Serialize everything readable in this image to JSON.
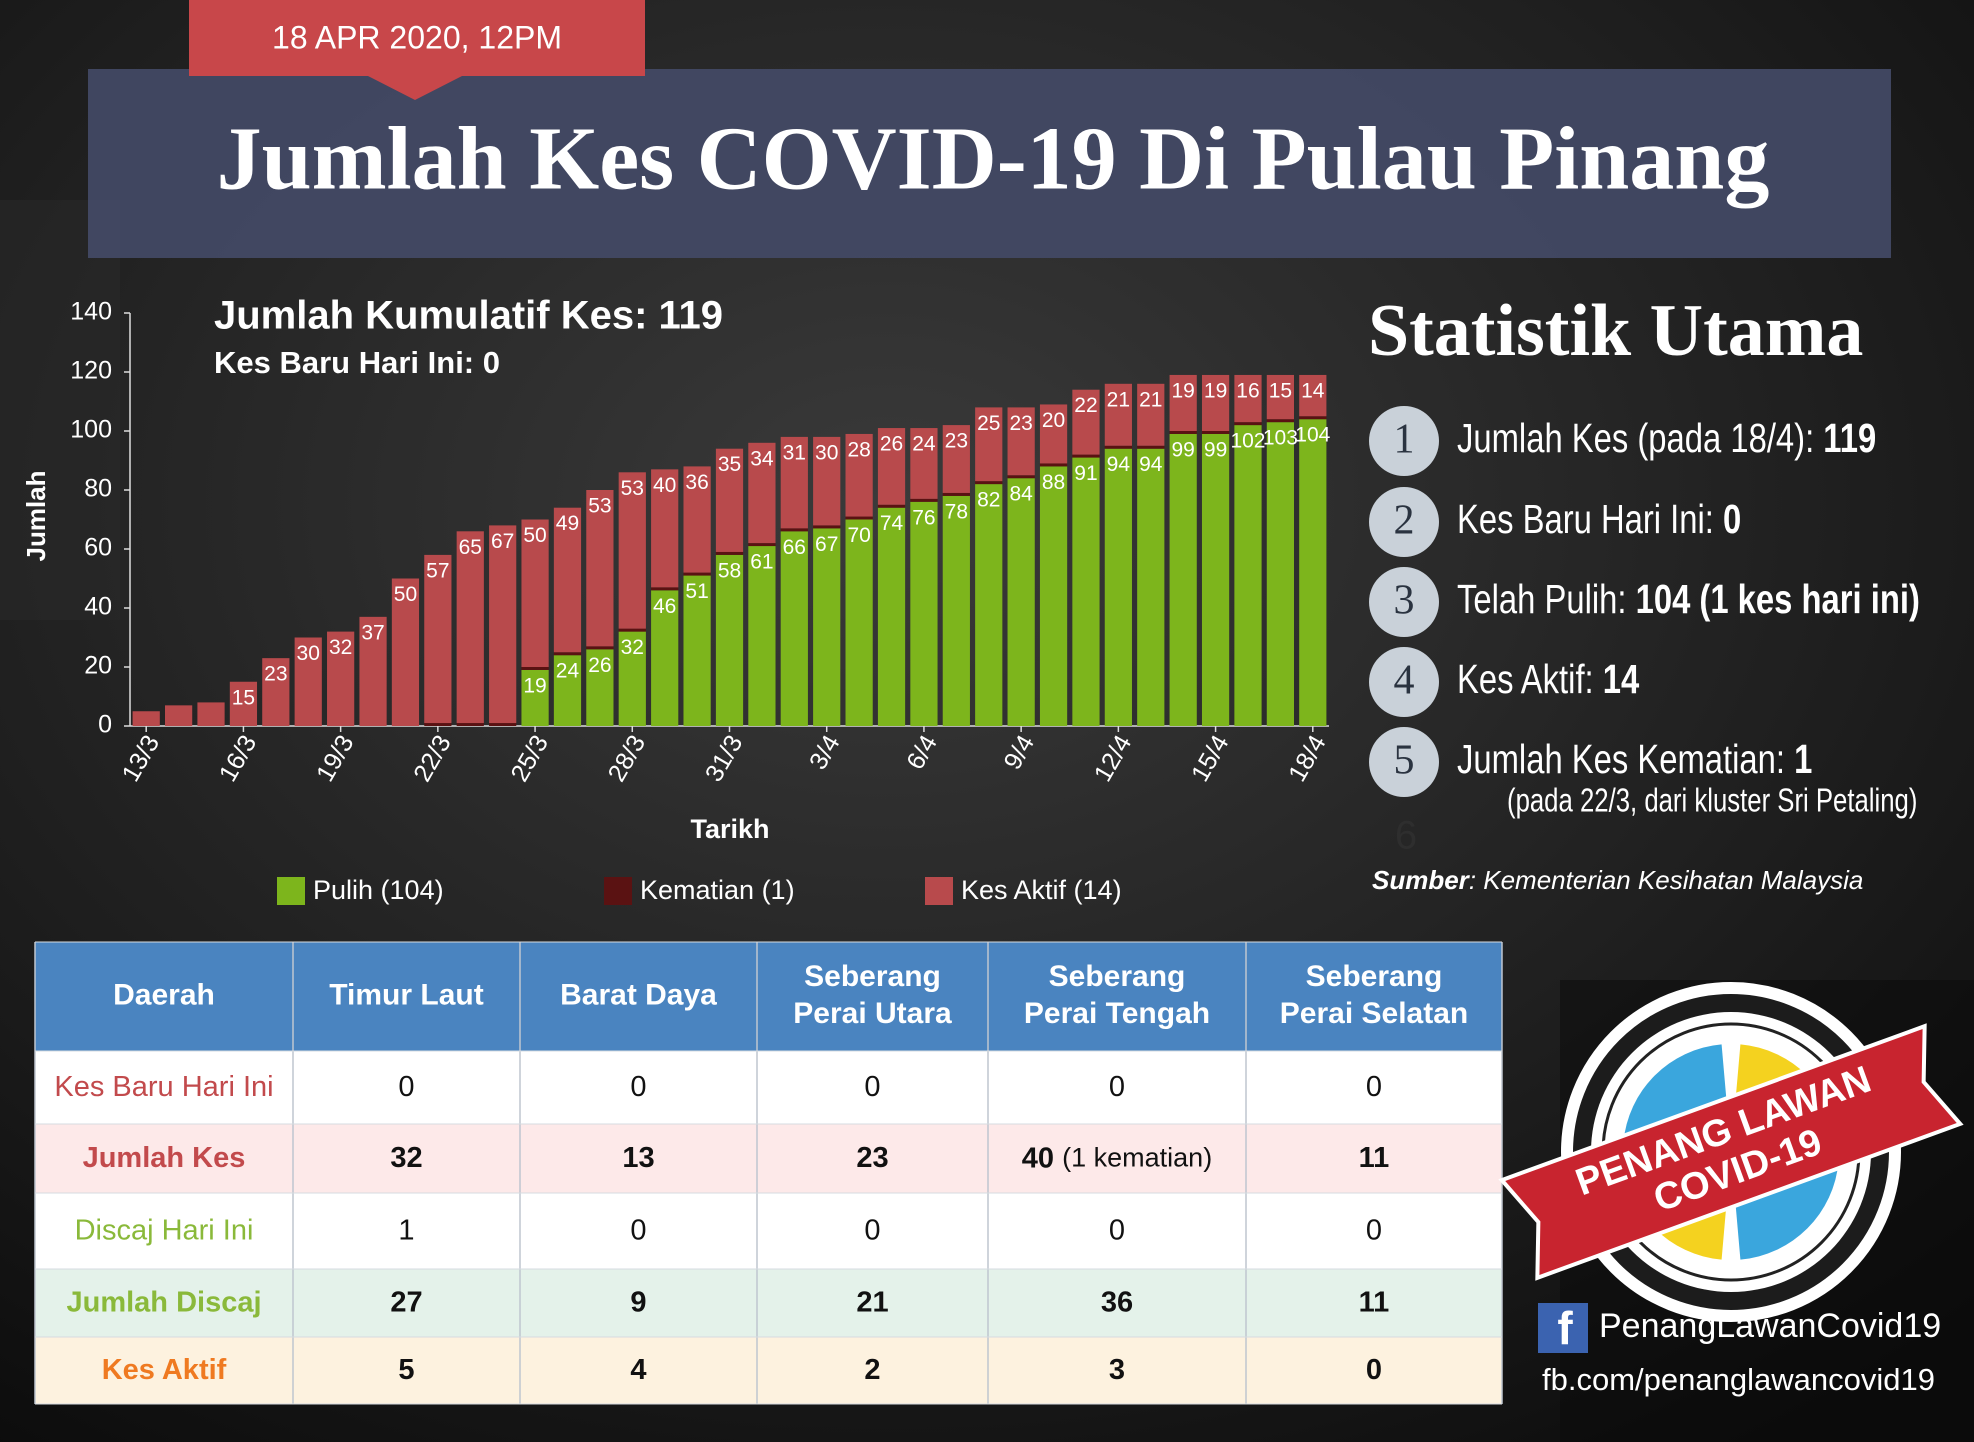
{
  "header": {
    "date": "18 APR 2020, 12PM",
    "title": "Jumlah Kes COVID-19 Di Pulau Pinang"
  },
  "chart_data": {
    "type": "bar",
    "stacked": true,
    "title": "Jumlah Kumulatif Kes: 119",
    "subtitle": "Kes Baru Hari Ini: 0",
    "x_label": "Tarikh",
    "y_label": "Jumlah",
    "categories": [
      "13/3",
      null,
      null,
      "16/3",
      null,
      null,
      "19/3",
      null,
      null,
      "22/3",
      null,
      null,
      "25/3",
      null,
      null,
      "28/3",
      null,
      null,
      "31/3",
      null,
      null,
      "3/4",
      null,
      null,
      "6/4",
      null,
      null,
      "9/4",
      null,
      null,
      "12/4",
      null,
      null,
      "15/4",
      null,
      null,
      "18/4"
    ],
    "series": [
      {
        "name": "Pulih (104)",
        "color": "#7db51c",
        "values": [
          0,
          0,
          0,
          0,
          0,
          0,
          0,
          0,
          0,
          0,
          0,
          0,
          19,
          24,
          26,
          32,
          46,
          51,
          58,
          61,
          66,
          67,
          70,
          74,
          76,
          78,
          82,
          84,
          88,
          91,
          94,
          94,
          99,
          99,
          102,
          103,
          104
        ]
      },
      {
        "name": "Kematian (1)",
        "color": "#5a1212",
        "values": [
          0,
          0,
          0,
          0,
          0,
          0,
          0,
          0,
          0,
          1,
          1,
          1,
          1,
          1,
          1,
          1,
          1,
          1,
          1,
          1,
          1,
          1,
          1,
          1,
          1,
          1,
          1,
          1,
          1,
          1,
          1,
          1,
          1,
          1,
          1,
          1,
          1
        ]
      },
      {
        "name": "Kes Aktif (14)",
        "color": "#b84a4c",
        "values": [
          5,
          7,
          8,
          15,
          23,
          30,
          32,
          37,
          50,
          57,
          65,
          67,
          50,
          49,
          53,
          53,
          40,
          36,
          35,
          34,
          31,
          30,
          28,
          26,
          24,
          23,
          25,
          23,
          20,
          22,
          21,
          21,
          19,
          19,
          16,
          15,
          14
        ]
      }
    ],
    "ylim": [
      0,
      140
    ],
    "yticks": [
      0,
      20,
      40,
      60,
      80,
      100,
      120,
      140
    ]
  },
  "stats": {
    "title": "Statistik Utama",
    "items": [
      {
        "number": "1",
        "label": "Jumlah Kes (pada 18/4):",
        "value": "119"
      },
      {
        "number": "2",
        "label": "Kes Baru Hari Ini:",
        "value": "0"
      },
      {
        "number": "3",
        "label": "Telah Pulih:",
        "value": "104 (1 kes hari ini)"
      },
      {
        "number": "4",
        "label": "Kes Aktif:",
        "value": "14"
      },
      {
        "number": "5",
        "label": "Jumlah Kes Kematian:",
        "value": "1",
        "note": "(pada 22/3, dari kluster Sri Petaling)"
      }
    ],
    "extra": "6",
    "source_label": "Sumber",
    "source": ": Kementerian Kesihatan Malaysia"
  },
  "table": {
    "header": [
      "Daerah",
      "Timur Laut",
      "Barat Daya",
      [
        "Seberang",
        "Perai Utara"
      ],
      [
        "Seberang",
        "Perai Tengah"
      ],
      [
        "Seberang",
        "Perai Selatan"
      ]
    ],
    "rows": [
      {
        "label": "Kes Baru Hari Ini",
        "cells": [
          0,
          0,
          0,
          0,
          0
        ]
      },
      {
        "label": "Jumlah Kes",
        "cells": [
          32,
          13,
          23,
          {
            "value": 40,
            "note": "(1 kematian)"
          },
          11
        ]
      },
      {
        "label": "Discaj Hari Ini",
        "cells": [
          1,
          0,
          0,
          0,
          0
        ]
      },
      {
        "label": "Jumlah Discaj",
        "cells": [
          27,
          9,
          21,
          36,
          11
        ]
      },
      {
        "label": "Kes Aktif",
        "cells": [
          5,
          4,
          2,
          3,
          0
        ]
      }
    ]
  },
  "logo": {
    "line1": "PENANG LAWAN",
    "line2": "COVID-19"
  },
  "social": {
    "icon": "f",
    "page": "PenangLawanCovid19",
    "url": "fb.com/penanglawancovid19"
  }
}
